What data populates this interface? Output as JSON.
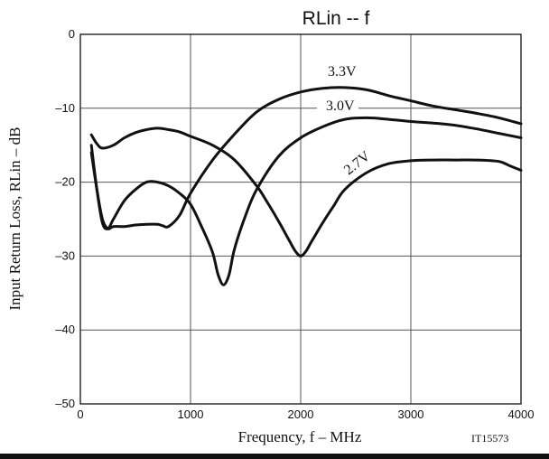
{
  "chart_data": {
    "type": "line",
    "title": "RLin  --  f",
    "xlabel": "Frequency, f  –  MHz",
    "ylabel": "Input Return Loss, RLin   –  dB",
    "figure_code": "IT15573",
    "xlim": [
      0,
      4000
    ],
    "ylim": [
      -50,
      0
    ],
    "xticks": [
      0,
      1000,
      2000,
      3000,
      4000
    ],
    "xtick_labels": [
      "0",
      "1000",
      "2000",
      "3000",
      "4000"
    ],
    "yticks": [
      0,
      -10,
      -20,
      -30,
      -40,
      -50
    ],
    "ytick_labels": [
      "0",
      "–10",
      "–20",
      "–30",
      "–40",
      "–50"
    ],
    "grid": true,
    "legend": "none",
    "series": [
      {
        "name": "3.3V",
        "x": [
          100,
          150,
          200,
          250,
          300,
          400,
          500,
          600,
          700,
          750,
          800,
          900,
          1000,
          1200,
          1400,
          1600,
          1800,
          2000,
          2200,
          2400,
          2600,
          2800,
          3000,
          3200,
          3400,
          3600,
          3800,
          4000
        ],
        "y": [
          -16.0,
          -21.0,
          -25.0,
          -26.3,
          -26.0,
          -26.0,
          -25.8,
          -25.7,
          -25.7,
          -25.9,
          -26.0,
          -24.5,
          -21.5,
          -17.0,
          -13.5,
          -10.5,
          -8.8,
          -7.8,
          -7.3,
          -7.2,
          -7.5,
          -8.3,
          -9.0,
          -9.7,
          -10.2,
          -10.7,
          -11.3,
          -12.1
        ]
      },
      {
        "name": "3.0V",
        "x": [
          100,
          150,
          200,
          250,
          300,
          400,
          500,
          600,
          700,
          800,
          900,
          1000,
          1100,
          1200,
          1250,
          1300,
          1350,
          1400,
          1500,
          1600,
          1800,
          2000,
          2200,
          2400,
          2600,
          2800,
          3000,
          3200,
          3400,
          3600,
          3800,
          4000
        ],
        "y": [
          -15.0,
          -21.0,
          -25.5,
          -26.3,
          -25.0,
          -22.5,
          -21.0,
          -20.0,
          -20.0,
          -20.5,
          -21.5,
          -23.0,
          -26.0,
          -29.5,
          -32.5,
          -33.9,
          -32.5,
          -29.0,
          -24.5,
          -21.0,
          -16.5,
          -14.0,
          -12.5,
          -11.5,
          -11.3,
          -11.5,
          -11.8,
          -12.0,
          -12.3,
          -12.8,
          -13.4,
          -14.0
        ]
      },
      {
        "name": "2.7V",
        "x": [
          100,
          150,
          200,
          300,
          400,
          500,
          600,
          700,
          800,
          900,
          1000,
          1200,
          1400,
          1600,
          1700,
          1800,
          1900,
          1950,
          2000,
          2050,
          2100,
          2200,
          2300,
          2400,
          2600,
          2800,
          3000,
          3200,
          3400,
          3600,
          3800,
          3900,
          4000
        ],
        "y": [
          -13.6,
          -14.8,
          -15.4,
          -15.0,
          -14.0,
          -13.3,
          -12.9,
          -12.7,
          -12.9,
          -13.2,
          -13.8,
          -15.0,
          -17.0,
          -20.5,
          -22.8,
          -25.3,
          -28.0,
          -29.3,
          -30.0,
          -29.3,
          -28.0,
          -25.5,
          -23.2,
          -21.0,
          -18.7,
          -17.5,
          -17.1,
          -17.0,
          -17.0,
          -17.0,
          -17.2,
          -17.8,
          -18.4
        ]
      }
    ]
  }
}
